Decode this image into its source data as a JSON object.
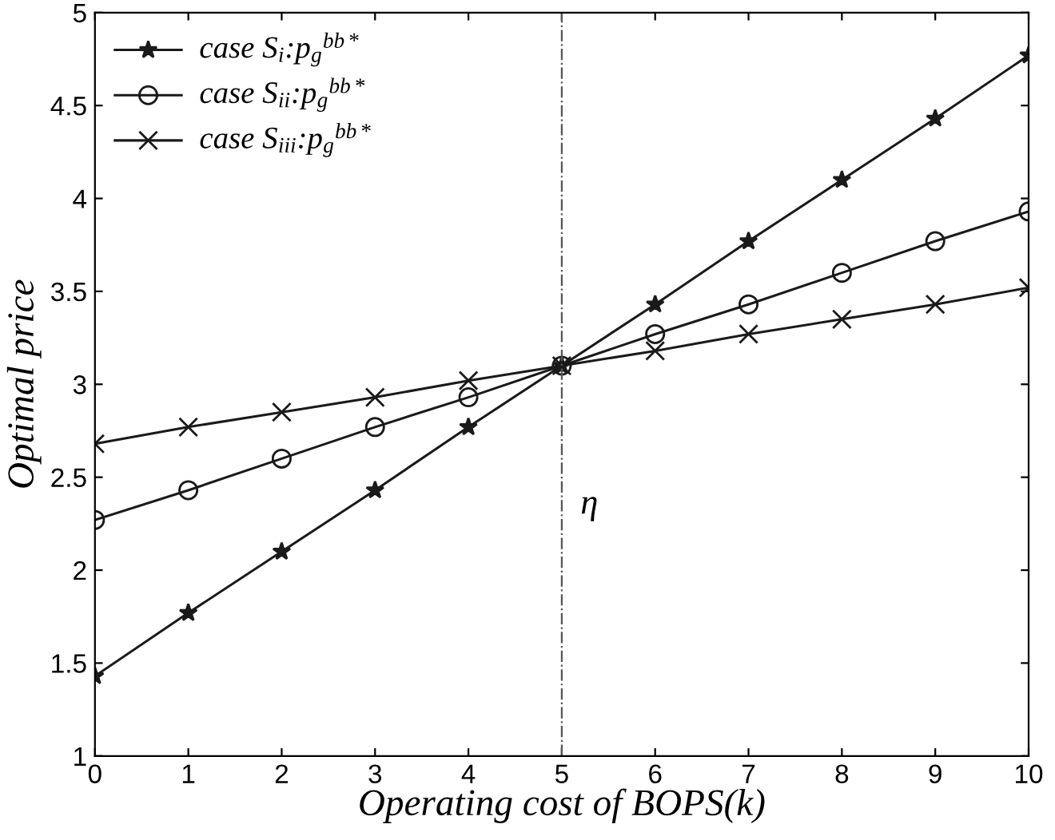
{
  "chart_data": {
    "type": "line",
    "xlabel": "Operating cost of BOPS(k)",
    "ylabel": "Optimal price",
    "x": [
      0,
      1,
      2,
      3,
      4,
      5,
      6,
      7,
      8,
      9,
      10
    ],
    "series": [
      {
        "name": "case S$_{i}$:p$_{g}$$^{bb*}$",
        "color": "#1a1a1a",
        "marker": "star",
        "values": [
          1.43,
          1.77,
          2.1,
          2.43,
          2.77,
          3.1,
          3.43,
          3.77,
          4.1,
          4.43,
          4.77
        ]
      },
      {
        "name": "case S$_{ii}$:p$_{g}$$^{bb*}$",
        "color": "#1a1a1a",
        "marker": "circle",
        "values": [
          2.27,
          2.43,
          2.6,
          2.77,
          2.93,
          3.1,
          3.27,
          3.43,
          3.6,
          3.77,
          3.93
        ]
      },
      {
        "name": "case S$_{iii}$:p$_{g}$$^{bb*}$",
        "color": "#1a1a1a",
        "marker": "cross",
        "values": [
          2.68,
          2.77,
          2.85,
          2.93,
          3.02,
          3.1,
          3.18,
          3.27,
          3.35,
          3.43,
          3.52
        ]
      }
    ],
    "xlim": [
      0,
      10
    ],
    "xticks": [
      0,
      1,
      2,
      3,
      4,
      5,
      6,
      7,
      8,
      9,
      10
    ],
    "ylim": [
      1,
      5
    ],
    "yticks": [
      1,
      1.5,
      2,
      2.5,
      3,
      3.5,
      4,
      4.5,
      5
    ],
    "ref_lines": [
      {
        "axis": "x",
        "value": 5,
        "label": "η",
        "color": "#555555",
        "line_style": "dashdot"
      }
    ],
    "line_style": "solid",
    "grid": false,
    "legend": "top left"
  }
}
